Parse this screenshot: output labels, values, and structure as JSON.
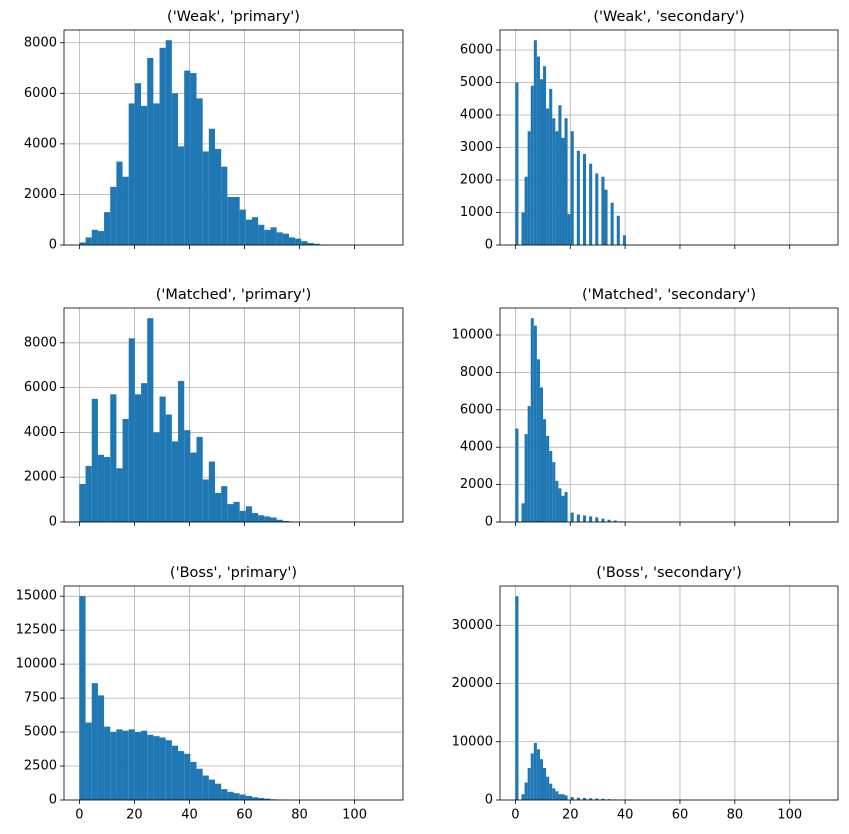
{
  "chart_data": [
    {
      "type": "histogram",
      "title": "('Weak', 'primary')",
      "color": "#1f77b4",
      "grid": true,
      "bins": [
        0,
        2.24,
        4.48,
        6.72,
        8.96,
        11.2,
        13.44,
        15.68,
        17.92,
        20.16,
        22.4,
        24.64,
        26.88,
        29.12,
        31.36,
        33.6,
        35.84,
        38.08,
        40.32,
        42.56,
        44.8,
        47.04,
        49.28,
        51.52,
        53.76,
        56,
        58.24,
        60.48,
        62.72,
        64.96,
        67.2,
        69.44,
        71.68,
        73.92,
        76.16,
        78.4,
        80.64,
        82.88,
        85.12,
        87.36,
        89.6,
        91.84,
        94.08,
        96.32,
        98.56,
        100.8,
        103.04,
        105.28,
        107.52,
        109.76,
        112
      ],
      "values": [
        100,
        300,
        600,
        550,
        1300,
        2300,
        3300,
        2700,
        5600,
        6400,
        5500,
        7400,
        5600,
        7800,
        8100,
        6000,
        3900,
        6900,
        6800,
        5800,
        3700,
        4600,
        3800,
        3100,
        1900,
        1900,
        1400,
        1000,
        1100,
        800,
        600,
        700,
        500,
        450,
        300,
        250,
        150,
        80,
        50,
        20,
        0,
        0,
        0,
        0,
        0,
        0,
        0,
        0,
        0,
        0
      ],
      "xlim": [
        -5.6,
        117.6
      ],
      "xticks": [
        0,
        20,
        40,
        60,
        80,
        100
      ],
      "ylim": [
        0,
        8505
      ],
      "yticks": [
        0,
        2000,
        4000,
        6000,
        8000
      ]
    },
    {
      "type": "histogram",
      "title": "('Weak', 'secondary')",
      "color": "#1f77b4",
      "grid": true,
      "bins": [
        0,
        1.12,
        2.24,
        3.36,
        4.48,
        5.6,
        6.72,
        7.84,
        8.96,
        10.08,
        11.2,
        12.32,
        13.44,
        14.56,
        15.68,
        16.8,
        17.92,
        19.04,
        20.16,
        21.28,
        22.4,
        23.52,
        24.64,
        25.76,
        26.88,
        28,
        29.12,
        30.24,
        31.36,
        32.48,
        33.6,
        34.72,
        35.84,
        36.96,
        38.08,
        39.2,
        40.32,
        41.44,
        42.56,
        43.68,
        44.8,
        45.92,
        47.04,
        48.16,
        49.28,
        50.4,
        51.52,
        52.64,
        53.76,
        54.88,
        56,
        57.12,
        58.24,
        59.36,
        60.48,
        61.6,
        62.72,
        63.84,
        64.96,
        66.08,
        67.2,
        68.32,
        69.44,
        70.56,
        71.68,
        72.8,
        73.92,
        75.04,
        76.16,
        77.28,
        78.4,
        79.52,
        80.64,
        81.76,
        82.88,
        84,
        85.12,
        86.24,
        87.36,
        88.48,
        89.6,
        90.72,
        91.84,
        92.96,
        94.08,
        95.2,
        96.32,
        97.44,
        98.56,
        99.68,
        100.8,
        101.92,
        103.04,
        104.16,
        105.28,
        106.4,
        107.52,
        108.64,
        109.76,
        110.88,
        112
      ],
      "values": [
        5000,
        0,
        1000,
        2100,
        3500,
        4900,
        6300,
        5800,
        5100,
        5500,
        4200,
        4800,
        3900,
        3500,
        4300,
        3300,
        3900,
        950,
        3500,
        0,
        2900,
        0,
        2800,
        0,
        2500,
        0,
        2200,
        0,
        2100,
        1700,
        0,
        1300,
        0,
        900,
        0,
        300,
        0,
        0,
        0,
        0,
        0,
        0,
        0,
        0,
        0,
        0,
        0,
        0,
        0,
        0,
        0,
        0,
        0,
        0,
        0,
        0,
        0,
        0,
        0,
        0,
        0,
        0,
        0,
        0,
        0,
        0,
        0,
        0,
        0,
        0,
        0,
        0,
        0,
        0,
        0,
        0,
        0,
        0,
        0,
        0,
        0,
        0,
        0,
        0,
        0,
        0,
        0,
        0,
        0,
        0,
        0,
        0,
        0,
        0,
        0,
        0,
        0,
        0,
        0,
        0
      ],
      "xlim": [
        -5.6,
        117.6
      ],
      "xticks": [
        0,
        20,
        40,
        60,
        80,
        100
      ],
      "ylim": [
        0,
        6615
      ],
      "yticks": [
        0,
        1000,
        2000,
        3000,
        4000,
        5000,
        6000
      ]
    },
    {
      "type": "histogram",
      "title": "('Matched', 'primary')",
      "color": "#1f77b4",
      "grid": true,
      "bins": [
        0,
        2.24,
        4.48,
        6.72,
        8.96,
        11.2,
        13.44,
        15.68,
        17.92,
        20.16,
        22.4,
        24.64,
        26.88,
        29.12,
        31.36,
        33.6,
        35.84,
        38.08,
        40.32,
        42.56,
        44.8,
        47.04,
        49.28,
        51.52,
        53.76,
        56,
        58.24,
        60.48,
        62.72,
        64.96,
        67.2,
        69.44,
        71.68,
        73.92,
        76.16,
        78.4,
        80.64,
        82.88,
        85.12,
        87.36,
        89.6,
        91.84,
        94.08,
        96.32,
        98.56,
        100.8,
        103.04,
        105.28,
        107.52,
        109.76,
        112
      ],
      "values": [
        1700,
        2500,
        5500,
        3000,
        2900,
        5700,
        2400,
        4600,
        8200,
        5700,
        6200,
        9100,
        4000,
        5600,
        4800,
        3600,
        6300,
        4100,
        3100,
        3800,
        1900,
        2700,
        1300,
        1600,
        800,
        900,
        500,
        700,
        400,
        300,
        250,
        200,
        100,
        50,
        20,
        0,
        0,
        0,
        0,
        0,
        0,
        0,
        0,
        0,
        0,
        0,
        0,
        0,
        0,
        0
      ],
      "xlim": [
        -5.6,
        117.6
      ],
      "xticks": [
        0,
        20,
        40,
        60,
        80,
        100
      ],
      "ylim": [
        0,
        9555
      ],
      "yticks": [
        0,
        2000,
        4000,
        6000,
        8000
      ]
    },
    {
      "type": "histogram",
      "title": "('Matched', 'secondary')",
      "color": "#1f77b4",
      "grid": true,
      "bins": [
        0,
        1.12,
        2.24,
        3.36,
        4.48,
        5.6,
        6.72,
        7.84,
        8.96,
        10.08,
        11.2,
        12.32,
        13.44,
        14.56,
        15.68,
        16.8,
        17.92,
        19.04,
        20.16,
        21.28,
        22.4,
        23.52,
        24.64,
        25.76,
        26.88,
        28,
        29.12,
        30.24,
        31.36,
        32.48,
        33.6,
        34.72,
        35.84,
        36.96,
        38.08,
        39.2,
        40.32,
        41.44,
        42.56,
        43.68,
        44.8,
        45.92,
        47.04,
        48.16,
        49.28,
        50.4,
        51.52,
        52.64,
        53.76,
        54.88,
        56,
        57.12,
        58.24,
        59.36,
        60.48,
        61.6,
        62.72,
        63.84,
        64.96,
        66.08,
        67.2,
        68.32,
        69.44,
        70.56,
        71.68,
        72.8,
        73.92,
        75.04,
        76.16,
        77.28,
        78.4,
        79.52,
        80.64,
        81.76,
        82.88,
        84,
        85.12,
        86.24,
        87.36,
        88.48,
        89.6,
        90.72,
        91.84,
        92.96,
        94.08,
        95.2,
        96.32,
        97.44,
        98.56,
        99.68,
        100.8,
        101.92,
        103.04,
        104.16,
        105.28,
        106.4,
        107.52,
        108.64,
        109.76,
        110.88,
        112
      ],
      "values": [
        5000,
        0,
        1000,
        4700,
        6200,
        10900,
        10500,
        8700,
        7200,
        5500,
        4600,
        3800,
        3200,
        2200,
        1800,
        1400,
        1600,
        0,
        500,
        0,
        400,
        0,
        350,
        0,
        300,
        0,
        250,
        0,
        180,
        0,
        120,
        0,
        80,
        0,
        40,
        0,
        20,
        0,
        0,
        0,
        0,
        0,
        0,
        0,
        0,
        0,
        0,
        0,
        0,
        0,
        0,
        0,
        0,
        0,
        0,
        0,
        0,
        0,
        0,
        0,
        0,
        0,
        0,
        0,
        0,
        0,
        0,
        0,
        0,
        0,
        0,
        0,
        0,
        0,
        0,
        0,
        0,
        0,
        0,
        0,
        0,
        0,
        0,
        0,
        0,
        0,
        0,
        0,
        0,
        0,
        0,
        0,
        0,
        0,
        0,
        0,
        0,
        0,
        0,
        0
      ],
      "xlim": [
        -5.6,
        117.6
      ],
      "xticks": [
        0,
        20,
        40,
        60,
        80,
        100
      ],
      "ylim": [
        0,
        11445
      ],
      "yticks": [
        0,
        2000,
        4000,
        6000,
        8000,
        10000
      ]
    },
    {
      "type": "histogram",
      "title": "('Boss', 'primary')",
      "color": "#1f77b4",
      "grid": true,
      "bins": [
        0,
        2.24,
        4.48,
        6.72,
        8.96,
        11.2,
        13.44,
        15.68,
        17.92,
        20.16,
        22.4,
        24.64,
        26.88,
        29.12,
        31.36,
        33.6,
        35.84,
        38.08,
        40.32,
        42.56,
        44.8,
        47.04,
        49.28,
        51.52,
        53.76,
        56,
        58.24,
        60.48,
        62.72,
        64.96,
        67.2,
        69.44,
        71.68,
        73.92,
        76.16,
        78.4,
        80.64,
        82.88,
        85.12,
        87.36,
        89.6,
        91.84,
        94.08,
        96.32,
        98.56,
        100.8,
        103.04,
        105.28,
        107.52,
        109.76,
        112
      ],
      "values": [
        15000,
        5700,
        8600,
        7700,
        5400,
        5000,
        5200,
        5100,
        5200,
        5000,
        5100,
        4800,
        4700,
        4600,
        4400,
        4000,
        3600,
        3400,
        2800,
        2300,
        1800,
        1500,
        1200,
        800,
        600,
        500,
        400,
        300,
        200,
        150,
        100,
        50,
        20,
        0,
        0,
        0,
        0,
        0,
        0,
        0,
        0,
        0,
        0,
        0,
        0,
        0,
        0,
        0,
        0,
        0
      ],
      "xlim": [
        -5.6,
        117.6
      ],
      "xticks": [
        0,
        20,
        40,
        60,
        80,
        100
      ],
      "ylim": [
        0,
        15750
      ],
      "yticks": [
        0,
        2500,
        5000,
        7500,
        10000,
        12500,
        15000
      ]
    },
    {
      "type": "histogram",
      "title": "('Boss', 'secondary')",
      "color": "#1f77b4",
      "grid": true,
      "bins": [
        0,
        1.12,
        2.24,
        3.36,
        4.48,
        5.6,
        6.72,
        7.84,
        8.96,
        10.08,
        11.2,
        12.32,
        13.44,
        14.56,
        15.68,
        16.8,
        17.92,
        19.04,
        20.16,
        21.28,
        22.4,
        23.52,
        24.64,
        25.76,
        26.88,
        28,
        29.12,
        30.24,
        31.36,
        32.48,
        33.6,
        34.72,
        35.84,
        36.96,
        38.08,
        39.2,
        40.32,
        41.44,
        42.56,
        43.68,
        44.8,
        45.92,
        47.04,
        48.16,
        49.28,
        50.4,
        51.52,
        52.64,
        53.76,
        54.88,
        56,
        57.12,
        58.24,
        59.36,
        60.48,
        61.6,
        62.72,
        63.84,
        64.96,
        66.08,
        67.2,
        68.32,
        69.44,
        70.56,
        71.68,
        72.8,
        73.92,
        75.04,
        76.16,
        77.28,
        78.4,
        79.52,
        80.64,
        81.76,
        82.88,
        84,
        85.12,
        86.24,
        87.36,
        88.48,
        89.6,
        90.72,
        91.84,
        92.96,
        94.08,
        95.2,
        96.32,
        97.44,
        98.56,
        99.68,
        100.8,
        101.92,
        103.04,
        104.16,
        105.28,
        106.4,
        107.52,
        108.64,
        109.76,
        110.88,
        112
      ],
      "values": [
        35000,
        0,
        1000,
        3000,
        5500,
        8000,
        9800,
        8700,
        7000,
        5500,
        4000,
        2800,
        2000,
        1500,
        1000,
        1000,
        800,
        0,
        500,
        0,
        400,
        0,
        350,
        0,
        300,
        0,
        250,
        0,
        200,
        0,
        150,
        0,
        100,
        0,
        50,
        0,
        20,
        0,
        0,
        0,
        0,
        0,
        0,
        0,
        0,
        0,
        0,
        0,
        0,
        0,
        0,
        0,
        0,
        0,
        0,
        0,
        0,
        0,
        0,
        0,
        0,
        0,
        0,
        0,
        0,
        0,
        0,
        0,
        0,
        0,
        0,
        0,
        0,
        0,
        0,
        0,
        0,
        0,
        0,
        0,
        0,
        0,
        0,
        0,
        0,
        0,
        0,
        0,
        0,
        0,
        0,
        0,
        0,
        0,
        0,
        0,
        0,
        0,
        0,
        0
      ],
      "xlim": [
        -5.6,
        117.6
      ],
      "xticks": [
        0,
        20,
        40,
        60,
        80,
        100
      ],
      "ylim": [
        0,
        36750
      ],
      "yticks": [
        0,
        10000,
        20000,
        30000
      ]
    }
  ]
}
